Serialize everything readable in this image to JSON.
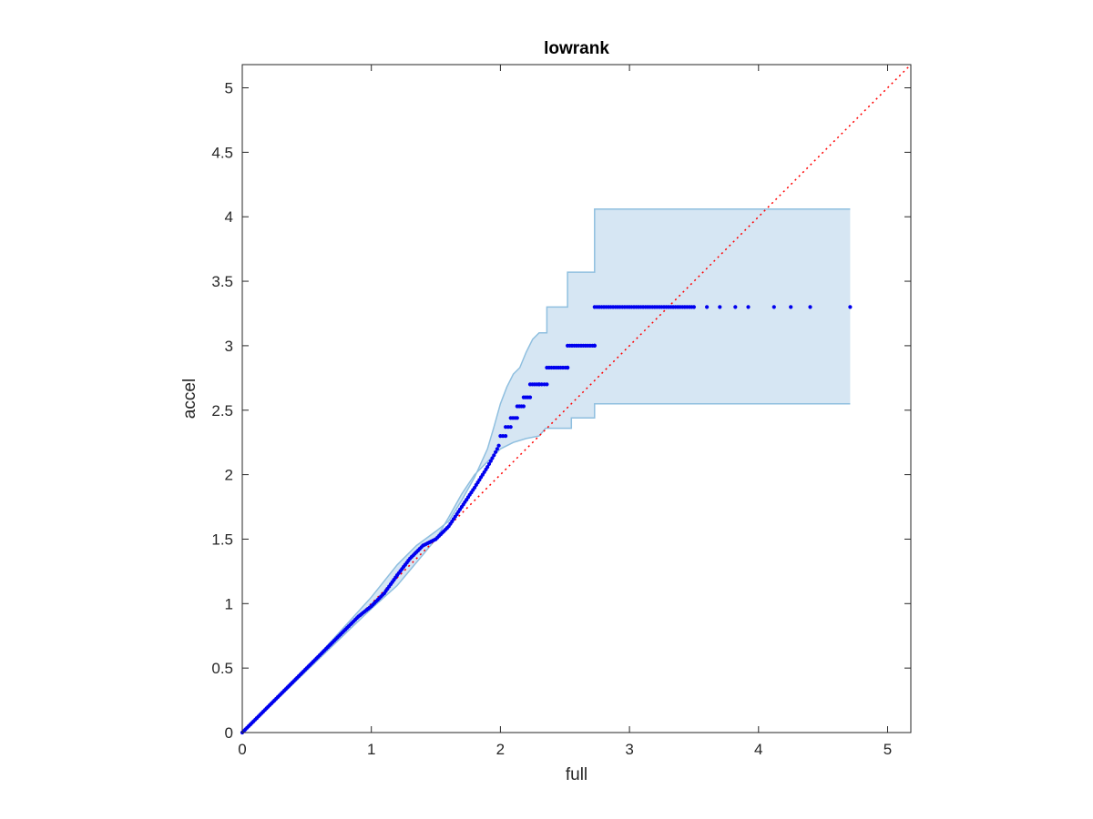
{
  "chart_data": {
    "type": "scatter",
    "title": "lowrank",
    "xlabel": "full",
    "ylabel": "accel",
    "xlim": [
      0,
      5.18
    ],
    "ylim": [
      0,
      5.18
    ],
    "xticks": [
      "0",
      "1",
      "2",
      "3",
      "4",
      "5"
    ],
    "yticks": [
      "0",
      "0.5",
      "1",
      "1.5",
      "2",
      "2.5",
      "3",
      "3.5",
      "4",
      "4.5",
      "5"
    ],
    "grid": false,
    "legend": "none",
    "colors": {
      "points": "#0000ee",
      "band_fill": "#d6e6f3",
      "band_edge": "#8fbfdf",
      "reference_line": "#ff0000",
      "axes": "#262626"
    },
    "reference_line": {
      "style": "dotted",
      "x": [
        0,
        5.18
      ],
      "y": [
        0,
        5.18
      ]
    },
    "band": {
      "upper": [
        [
          0,
          0
        ],
        [
          0.2,
          0.2
        ],
        [
          0.5,
          0.5
        ],
        [
          0.8,
          0.83
        ],
        [
          1.0,
          1.05
        ],
        [
          1.2,
          1.3
        ],
        [
          1.35,
          1.45
        ],
        [
          1.5,
          1.56
        ],
        [
          1.6,
          1.64
        ],
        [
          1.7,
          1.8
        ],
        [
          1.8,
          1.98
        ],
        [
          1.9,
          2.2
        ],
        [
          1.95,
          2.37
        ],
        [
          2.0,
          2.55
        ],
        [
          2.05,
          2.68
        ],
        [
          2.1,
          2.78
        ],
        [
          2.15,
          2.83
        ],
        [
          2.2,
          2.95
        ],
        [
          2.25,
          3.05
        ],
        [
          2.3,
          3.1
        ],
        [
          2.36,
          3.1
        ],
        [
          2.36,
          3.3
        ],
        [
          2.52,
          3.3
        ],
        [
          2.52,
          3.57
        ],
        [
          2.73,
          3.57
        ],
        [
          2.73,
          4.06
        ],
        [
          4.71,
          4.06
        ]
      ],
      "lower": [
        [
          4.71,
          2.55
        ],
        [
          2.73,
          2.55
        ],
        [
          2.73,
          2.44
        ],
        [
          2.55,
          2.44
        ],
        [
          2.55,
          2.36
        ],
        [
          2.35,
          2.36
        ],
        [
          2.3,
          2.3
        ],
        [
          2.2,
          2.28
        ],
        [
          2.1,
          2.25
        ],
        [
          2.0,
          2.2
        ],
        [
          1.9,
          2.1
        ],
        [
          1.8,
          2.0
        ],
        [
          1.7,
          1.85
        ],
        [
          1.6,
          1.67
        ],
        [
          1.5,
          1.5
        ],
        [
          1.4,
          1.38
        ],
        [
          1.3,
          1.26
        ],
        [
          1.2,
          1.14
        ],
        [
          1.0,
          0.96
        ],
        [
          0.8,
          0.77
        ],
        [
          0.5,
          0.48
        ],
        [
          0.2,
          0.19
        ],
        [
          0,
          0
        ]
      ]
    },
    "points": {
      "curve": [
        [
          0,
          0
        ],
        [
          0.05,
          0.05
        ],
        [
          0.1,
          0.1
        ],
        [
          0.2,
          0.2
        ],
        [
          0.3,
          0.3
        ],
        [
          0.4,
          0.4
        ],
        [
          0.5,
          0.5
        ],
        [
          0.6,
          0.6
        ],
        [
          0.7,
          0.7
        ],
        [
          0.8,
          0.8
        ],
        [
          0.9,
          0.9
        ],
        [
          1.0,
          0.98
        ],
        [
          1.1,
          1.08
        ],
        [
          1.2,
          1.22
        ],
        [
          1.3,
          1.35
        ],
        [
          1.4,
          1.45
        ],
        [
          1.5,
          1.5
        ],
        [
          1.6,
          1.6
        ],
        [
          1.7,
          1.75
        ],
        [
          1.8,
          1.9
        ],
        [
          1.9,
          2.06
        ],
        [
          1.95,
          2.15
        ],
        [
          2.0,
          2.25
        ]
      ],
      "stair": [
        [
          2.0,
          2.3,
          2.36
        ],
        [
          2.04,
          2.37,
          2.42
        ],
        [
          2.08,
          2.44,
          2.49
        ],
        [
          2.13,
          2.53,
          2.58
        ],
        [
          2.18,
          2.6,
          2.62
        ],
        [
          2.23,
          2.7,
          2.7
        ],
        [
          2.3,
          2.7,
          2.7
        ],
        [
          2.36,
          2.83,
          2.83
        ],
        [
          2.52,
          2.83,
          2.83
        ],
        [
          2.52,
          3.0,
          3.0
        ],
        [
          2.73,
          3.0,
          3.0
        ],
        [
          2.73,
          3.3,
          3.3
        ],
        [
          3.5,
          3.3,
          3.3
        ]
      ],
      "sparse": [
        [
          3.6,
          3.3
        ],
        [
          3.7,
          3.3
        ],
        [
          3.82,
          3.3
        ],
        [
          3.92,
          3.3
        ],
        [
          4.12,
          3.3
        ],
        [
          4.25,
          3.3
        ],
        [
          4.4,
          3.3
        ],
        [
          4.71,
          3.3
        ]
      ]
    }
  }
}
